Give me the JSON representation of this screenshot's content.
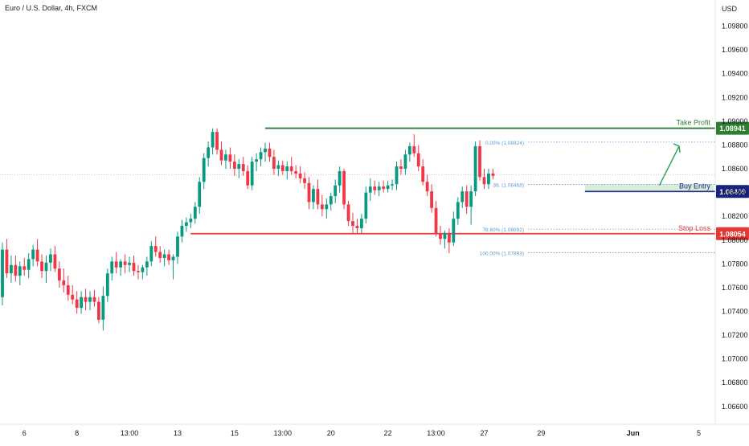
{
  "header": {
    "symbol_title": "Euro / U.S. Dollar, 4h, FXCM",
    "currency": "USD"
  },
  "colors": {
    "up": "#089981",
    "down": "#f23645",
    "take_profit": "#2e7d32",
    "entry": "#1a237e",
    "stop_loss": "#e53935",
    "fib": "#5b9bd5",
    "axis_text": "#131722",
    "grid_line": "#e0e3eb"
  },
  "chart_data": {
    "type": "candlestick",
    "y_axis": {
      "range": [
        1.0645,
        1.1002
      ],
      "ticks": [
        "1.09800",
        "1.09600",
        "1.09400",
        "1.09200",
        "1.09000",
        "1.08800",
        "1.08600",
        "1.08400",
        "1.08200",
        "1.08000",
        "1.07800",
        "1.07600",
        "1.07400",
        "1.07200",
        "1.07000",
        "1.06800",
        "1.06600"
      ]
    },
    "x_axis": {
      "ticks": [
        {
          "label": "6",
          "i": 5
        },
        {
          "label": "8",
          "i": 17
        },
        {
          "label": "13:00",
          "i": 29
        },
        {
          "label": "13",
          "i": 40
        },
        {
          "label": "15",
          "i": 53
        },
        {
          "label": "13:00",
          "i": 64
        },
        {
          "label": "20",
          "i": 75
        },
        {
          "label": "22",
          "i": 88
        },
        {
          "label": "13:00",
          "i": 99
        },
        {
          "label": "27",
          "i": 110
        },
        {
          "label": "29",
          "i": 123
        },
        {
          "label": "Jun",
          "i": 144
        },
        {
          "label": "5",
          "i": 159
        }
      ]
    },
    "candles": [
      [
        1.0752,
        1.0798,
        1.0745,
        1.0792
      ],
      [
        1.0792,
        1.0801,
        1.0768,
        1.0772
      ],
      [
        1.0772,
        1.0787,
        1.0764,
        1.0779
      ],
      [
        1.0779,
        1.0787,
        1.0765,
        1.077
      ],
      [
        1.077,
        1.0782,
        1.0762,
        1.0778
      ],
      [
        1.0778,
        1.0785,
        1.077,
        1.0775
      ],
      [
        1.0775,
        1.0789,
        1.0768,
        1.0784
      ],
      [
        1.0784,
        1.0796,
        1.0778,
        1.0792
      ],
      [
        1.0792,
        1.0801,
        1.0778,
        1.0782
      ],
      [
        1.0782,
        1.0788,
        1.0768,
        1.0774
      ],
      [
        1.0774,
        1.0787,
        1.0764,
        1.0781
      ],
      [
        1.0781,
        1.0793,
        1.0774,
        1.0788
      ],
      [
        1.0788,
        1.0795,
        1.0773,
        1.0776
      ],
      [
        1.0776,
        1.0782,
        1.076,
        1.0766
      ],
      [
        1.0766,
        1.0776,
        1.0756,
        1.0762
      ],
      [
        1.0762,
        1.077,
        1.0749,
        1.0754
      ],
      [
        1.0754,
        1.0762,
        1.0746,
        1.075
      ],
      [
        1.075,
        1.0757,
        1.0738,
        1.0743
      ],
      [
        1.0743,
        1.0757,
        1.0738,
        1.0752
      ],
      [
        1.0752,
        1.0759,
        1.0741,
        1.0748
      ],
      [
        1.0748,
        1.0757,
        1.0741,
        1.0752
      ],
      [
        1.0752,
        1.0758,
        1.0744,
        1.0748
      ],
      [
        1.0748,
        1.0752,
        1.073,
        1.0733
      ],
      [
        1.0733,
        1.0761,
        1.0724,
        1.0753
      ],
      [
        1.0753,
        1.0776,
        1.0748,
        1.0772
      ],
      [
        1.0772,
        1.0786,
        1.0766,
        1.0782
      ],
      [
        1.0782,
        1.079,
        1.0772,
        1.0777
      ],
      [
        1.0777,
        1.0784,
        1.077,
        1.0782
      ],
      [
        1.0782,
        1.0788,
        1.0772,
        1.0779
      ],
      [
        1.0779,
        1.0786,
        1.0773,
        1.0781
      ],
      [
        1.0781,
        1.0787,
        1.077,
        1.0774
      ],
      [
        1.0774,
        1.0779,
        1.0767,
        1.0773
      ],
      [
        1.0773,
        1.0779,
        1.0767,
        1.0777
      ],
      [
        1.0777,
        1.0786,
        1.077,
        1.0782
      ],
      [
        1.0782,
        1.0799,
        1.0778,
        1.0795
      ],
      [
        1.0795,
        1.0803,
        1.0786,
        1.079
      ],
      [
        1.079,
        1.0795,
        1.0781,
        1.0785
      ],
      [
        1.0785,
        1.0792,
        1.0778,
        1.0788
      ],
      [
        1.0788,
        1.0792,
        1.0779,
        1.0783
      ],
      [
        1.0783,
        1.0788,
        1.0767,
        1.0786
      ],
      [
        1.0786,
        1.0807,
        1.078,
        1.0803
      ],
      [
        1.0803,
        1.0817,
        1.0798,
        1.0812
      ],
      [
        1.0812,
        1.0819,
        1.0807,
        1.0815
      ],
      [
        1.0815,
        1.0822,
        1.081,
        1.0818
      ],
      [
        1.0818,
        1.0832,
        1.0814,
        1.0828
      ],
      [
        1.0828,
        1.0853,
        1.0822,
        1.0849
      ],
      [
        1.0849,
        1.0873,
        1.0843,
        1.0869
      ],
      [
        1.0869,
        1.0883,
        1.0862,
        1.0878
      ],
      [
        1.0878,
        1.0894,
        1.0872,
        1.0891
      ],
      [
        1.0891,
        1.0894,
        1.0872,
        1.0876
      ],
      [
        1.0876,
        1.0883,
        1.0863,
        1.0867
      ],
      [
        1.0867,
        1.0876,
        1.086,
        1.0872
      ],
      [
        1.0872,
        1.0878,
        1.086,
        1.0866
      ],
      [
        1.0866,
        1.0872,
        1.0854,
        1.086
      ],
      [
        1.086,
        1.0868,
        1.0852,
        1.0864
      ],
      [
        1.0864,
        1.087,
        1.0854,
        1.0858
      ],
      [
        1.0858,
        1.0863,
        1.0843,
        1.0846
      ],
      [
        1.0846,
        1.087,
        1.0842,
        1.0866
      ],
      [
        1.0866,
        1.0873,
        1.0858,
        1.0868
      ],
      [
        1.0868,
        1.0878,
        1.0862,
        1.0874
      ],
      [
        1.0874,
        1.0882,
        1.0866,
        1.0877
      ],
      [
        1.0877,
        1.0882,
        1.0866,
        1.087
      ],
      [
        1.087,
        1.0876,
        1.0855,
        1.086
      ],
      [
        1.086,
        1.0867,
        1.0854,
        1.0863
      ],
      [
        1.0863,
        1.0867,
        1.0855,
        1.0858
      ],
      [
        1.0858,
        1.0866,
        1.0851,
        1.0862
      ],
      [
        1.0862,
        1.087,
        1.0855,
        1.0858
      ],
      [
        1.0858,
        1.0863,
        1.0852,
        1.0856
      ],
      [
        1.0856,
        1.0862,
        1.0848,
        1.0852
      ],
      [
        1.0852,
        1.0857,
        1.0843,
        1.0848
      ],
      [
        1.0848,
        1.0853,
        1.0826,
        1.0832
      ],
      [
        1.0832,
        1.0846,
        1.0826,
        1.0843
      ],
      [
        1.0843,
        1.0851,
        1.0826,
        1.083
      ],
      [
        1.083,
        1.0838,
        1.082,
        1.0826
      ],
      [
        1.0826,
        1.0835,
        1.0818,
        1.083
      ],
      [
        1.083,
        1.084,
        1.0825,
        1.0837
      ],
      [
        1.0837,
        1.0851,
        1.0831,
        1.0846
      ],
      [
        1.0846,
        1.0862,
        1.084,
        1.0858
      ],
      [
        1.0858,
        1.086,
        1.0826,
        1.083
      ],
      [
        1.083,
        1.0833,
        1.0812,
        1.0816
      ],
      [
        1.0816,
        1.0823,
        1.0806,
        1.0812
      ],
      [
        1.0812,
        1.0818,
        1.0806,
        1.081
      ],
      [
        1.081,
        1.0822,
        1.0806,
        1.0818
      ],
      [
        1.0818,
        1.0845,
        1.0814,
        1.084
      ],
      [
        1.084,
        1.0852,
        1.0833,
        1.0845
      ],
      [
        1.0845,
        1.085,
        1.0838,
        1.0842
      ],
      [
        1.0842,
        1.0849,
        1.0837,
        1.0845
      ],
      [
        1.0845,
        1.085,
        1.084,
        1.0843
      ],
      [
        1.0843,
        1.085,
        1.084,
        1.0846
      ],
      [
        1.0846,
        1.0851,
        1.0842,
        1.0847
      ],
      [
        1.0847,
        1.0866,
        1.0842,
        1.0862
      ],
      [
        1.0862,
        1.0868,
        1.0855,
        1.086
      ],
      [
        1.086,
        1.0876,
        1.0855,
        1.0872
      ],
      [
        1.0872,
        1.0882,
        1.0866,
        1.0879
      ],
      [
        1.0879,
        1.0889,
        1.087,
        1.0873
      ],
      [
        1.0873,
        1.088,
        1.0858,
        1.0862
      ],
      [
        1.0862,
        1.0868,
        1.0846,
        1.0849
      ],
      [
        1.0849,
        1.0855,
        1.0837,
        1.0841
      ],
      [
        1.0841,
        1.0847,
        1.0823,
        1.0827
      ],
      [
        1.0827,
        1.0833,
        1.0803,
        1.0805
      ],
      [
        1.0805,
        1.0812,
        1.0796,
        1.0801
      ],
      [
        1.0801,
        1.0808,
        1.0793,
        1.0806
      ],
      [
        1.0806,
        1.081,
        1.0789,
        1.0798
      ],
      [
        1.0798,
        1.0824,
        1.0795,
        1.0818
      ],
      [
        1.0818,
        1.0836,
        1.0813,
        1.0832
      ],
      [
        1.0832,
        1.0845,
        1.0827,
        1.0841
      ],
      [
        1.0841,
        1.0846,
        1.0822,
        1.0828
      ],
      [
        1.0828,
        1.0846,
        1.0813,
        1.0841
      ],
      [
        1.0841,
        1.0883,
        1.0837,
        1.0879
      ],
      [
        1.0879,
        1.0884,
        1.085,
        1.0853
      ],
      [
        1.0853,
        1.086,
        1.0843,
        1.0847
      ],
      [
        1.0847,
        1.086,
        1.0843,
        1.0856
      ],
      [
        1.0856,
        1.086,
        1.0851,
        1.0854
      ]
    ],
    "levels": [
      {
        "name": "Take Profit",
        "value": 1.08941,
        "label": "1.08941"
      },
      {
        "name": "Buy Entry",
        "value": 1.08409,
        "label": "1.08409"
      },
      {
        "name": "Stop Loss",
        "value": 1.08054,
        "label": "1.08054"
      }
    ],
    "fib_levels": [
      {
        "label": "0.00% (1.08824)",
        "value": 1.08824
      },
      {
        "label": "38.",
        "label_tail": "(1.08468)",
        "value": 1.08468
      },
      {
        "label": "78.60% (1.08092)",
        "value": 1.08092
      },
      {
        "label": "100.00% (1.07893)",
        "value": 1.07893
      }
    ],
    "current_price": 1.0855
  }
}
